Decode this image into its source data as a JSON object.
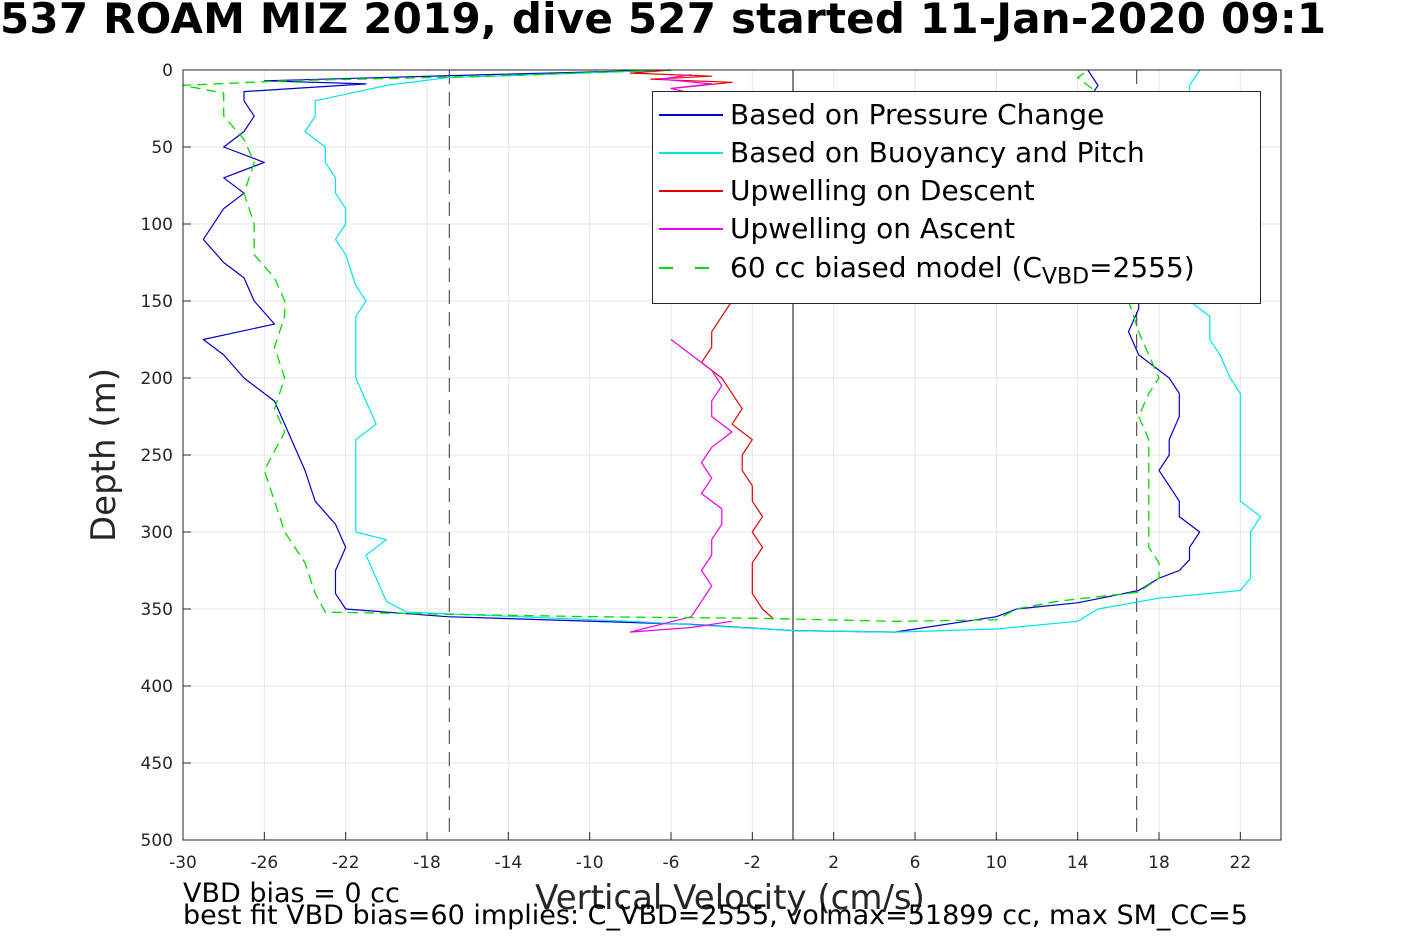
{
  "title": "537 ROAM MIZ 2019, dive 527 started 11-Jan-2020 09:1",
  "footer": {
    "line1": "VBD bias = 0 cc",
    "line2": "best fit VBD bias=60 implies: C_VBD=2555, volmax=51899 cc, max SM_CC=5"
  },
  "colors": {
    "pressure": "#0000cc",
    "buoyancy": "#00e5ee",
    "descent": "#e60000",
    "ascent": "#ee00ee",
    "model": "#00dd00",
    "grid": "#e6e6e6",
    "axis": "#262626"
  },
  "chart_data": {
    "type": "line",
    "xlabel": "Vertical Velocity (cm/s)",
    "ylabel": "Depth (m)",
    "xlim": [
      -30,
      24
    ],
    "ylim": [
      0,
      500
    ],
    "y_reversed": true,
    "xticks": [
      -30,
      -26,
      -22,
      -18,
      -14,
      -10,
      -6,
      -2,
      2,
      6,
      10,
      14,
      18,
      22
    ],
    "yticks": [
      0,
      50,
      100,
      150,
      200,
      250,
      300,
      350,
      400,
      450,
      500
    ],
    "grid": true,
    "legend_position": "top-right",
    "reference_lines": [
      {
        "x": -16.9,
        "style": "dashed"
      },
      {
        "x": 0,
        "style": "solid"
      },
      {
        "x": 16.9,
        "style": "dashed"
      }
    ],
    "legend": [
      {
        "key": "pressure",
        "label": "Based on Pressure Change",
        "style": "solid"
      },
      {
        "key": "buoyancy",
        "label": "Based on Buoyancy and Pitch",
        "style": "solid"
      },
      {
        "key": "descent",
        "label": "Upwelling on Descent",
        "style": "solid"
      },
      {
        "key": "ascent",
        "label": "Upwelling on Ascent",
        "style": "solid"
      },
      {
        "key": "model",
        "label": "60 cc biased model (C",
        "sub": "VBD",
        "suffix": "=2555)",
        "style": "dashed"
      }
    ],
    "series": [
      {
        "key": "pressure",
        "segments": [
          [
            [
              -6,
              0
            ],
            [
              -15,
              3
            ],
            [
              -26,
              7
            ],
            [
              -21,
              9
            ],
            [
              -27,
              14
            ],
            [
              -27,
              20
            ],
            [
              -26.5,
              30
            ],
            [
              -27,
              40
            ],
            [
              -28,
              50
            ],
            [
              -26,
              60
            ],
            [
              -28,
              70
            ],
            [
              -27,
              80
            ],
            [
              -28,
              90
            ],
            [
              -29,
              110
            ],
            [
              -28,
              125
            ],
            [
              -27,
              135
            ],
            [
              -26.5,
              150
            ],
            [
              -25.5,
              165
            ],
            [
              -29,
              175
            ],
            [
              -28,
              185
            ],
            [
              -27,
              200
            ],
            [
              -25.5,
              215
            ],
            [
              -25,
              230
            ],
            [
              -24.5,
              245
            ],
            [
              -24,
              260
            ],
            [
              -23.5,
              280
            ],
            [
              -22.5,
              295
            ],
            [
              -22,
              310
            ],
            [
              -22.5,
              325
            ],
            [
              -22.5,
              340
            ],
            [
              -22,
              350
            ],
            [
              -17,
              355
            ],
            [
              -5,
              360
            ],
            [
              0,
              364
            ],
            [
              5,
              365
            ],
            [
              10,
              355
            ],
            [
              11,
              350
            ],
            [
              14,
              346
            ],
            [
              17,
              338
            ],
            [
              18,
              330
            ],
            [
              19,
              325
            ],
            [
              19.5,
              318
            ],
            [
              19.5,
              310
            ],
            [
              20,
              300
            ],
            [
              19,
              290
            ],
            [
              19,
              280
            ],
            [
              18.5,
              270
            ],
            [
              18,
              260
            ],
            [
              18.5,
              250
            ],
            [
              18.5,
              240
            ],
            [
              19,
              225
            ],
            [
              19,
              210
            ],
            [
              18.5,
              200
            ],
            [
              17,
              185
            ],
            [
              16.5,
              170
            ],
            [
              17,
              155
            ],
            [
              17,
              145
            ],
            [
              17,
              130
            ],
            [
              16,
              120
            ],
            [
              15.5,
              100
            ],
            [
              15.5,
              80
            ],
            [
              15,
              60
            ],
            [
              15,
              40
            ],
            [
              14.5,
              20
            ],
            [
              15,
              10
            ],
            [
              14.5,
              0
            ]
          ]
        ]
      },
      {
        "key": "buoyancy",
        "segments": [
          [
            [
              -6,
              0
            ],
            [
              -17,
              5
            ],
            [
              -20,
              10
            ],
            [
              -23.5,
              20
            ],
            [
              -23.5,
              30
            ],
            [
              -24,
              40
            ],
            [
              -23,
              50
            ],
            [
              -23,
              60
            ],
            [
              -22.5,
              70
            ],
            [
              -22.5,
              80
            ],
            [
              -22,
              90
            ],
            [
              -22,
              100
            ],
            [
              -22.5,
              110
            ],
            [
              -22,
              120
            ],
            [
              -21.5,
              140
            ],
            [
              -21,
              150
            ],
            [
              -21.5,
              160
            ],
            [
              -21.5,
              170
            ],
            [
              -21.5,
              180
            ],
            [
              -21.5,
              200
            ],
            [
              -21,
              215
            ],
            [
              -20.5,
              230
            ],
            [
              -21.5,
              240
            ],
            [
              -21.5,
              260
            ],
            [
              -21.5,
              280
            ],
            [
              -21.5,
              300
            ],
            [
              -20,
              305
            ],
            [
              -21,
              315
            ],
            [
              -20.5,
              330
            ],
            [
              -20,
              345
            ],
            [
              -19,
              352
            ],
            [
              -8,
              358
            ],
            [
              0,
              364
            ],
            [
              5,
              365
            ],
            [
              10,
              363
            ],
            [
              14,
              358
            ],
            [
              15,
              350
            ],
            [
              18,
              343
            ],
            [
              22,
              338
            ],
            [
              22.5,
              330
            ],
            [
              22.5,
              320
            ],
            [
              22.5,
              300
            ],
            [
              23,
              290
            ],
            [
              22,
              280
            ],
            [
              22,
              260
            ],
            [
              22,
              240
            ],
            [
              22,
              220
            ],
            [
              22,
              210
            ],
            [
              21.5,
              200
            ],
            [
              21,
              185
            ],
            [
              20.5,
              175
            ],
            [
              20.5,
              160
            ],
            [
              19.5,
              150
            ],
            [
              19.5,
              120
            ],
            [
              19.5,
              100
            ],
            [
              19,
              80
            ],
            [
              19,
              60
            ],
            [
              19,
              40
            ],
            [
              19.5,
              20
            ],
            [
              19.5,
              10
            ],
            [
              20,
              0
            ]
          ]
        ]
      },
      {
        "key": "descent",
        "segments": [
          [
            [
              -6,
              0
            ],
            [
              -8,
              2
            ],
            [
              -4,
              4
            ],
            [
              -7,
              6
            ],
            [
              -3,
              8
            ],
            [
              -6,
              12
            ]
          ],
          [
            [
              -3,
              150
            ],
            [
              -3.5,
              160
            ],
            [
              -4,
              170
            ],
            [
              -4,
              180
            ],
            [
              -4.5,
              190
            ],
            [
              -3.5,
              200
            ],
            [
              -3,
              210
            ],
            [
              -2.5,
              220
            ],
            [
              -3,
              230
            ],
            [
              -2,
              240
            ],
            [
              -2.5,
              250
            ],
            [
              -2.5,
              260
            ],
            [
              -2,
              270
            ],
            [
              -2,
              280
            ],
            [
              -1.5,
              290
            ],
            [
              -2,
              300
            ],
            [
              -1.5,
              310
            ],
            [
              -2,
              320
            ],
            [
              -2,
              330
            ],
            [
              -2,
              340
            ],
            [
              -1.5,
              350
            ],
            [
              -1,
              356
            ]
          ]
        ]
      },
      {
        "key": "ascent",
        "segments": [
          [
            [
              -5,
              3
            ],
            [
              -6.5,
              6
            ],
            [
              -4,
              9
            ],
            [
              -6,
              12
            ],
            [
              -5,
              15
            ]
          ],
          [
            [
              -6,
              175
            ],
            [
              -5,
              185
            ],
            [
              -4,
              195
            ],
            [
              -3.5,
              205
            ],
            [
              -4,
              215
            ],
            [
              -4,
              225
            ],
            [
              -3,
              235
            ],
            [
              -4,
              245
            ],
            [
              -4.5,
              255
            ],
            [
              -4,
              265
            ],
            [
              -4.5,
              275
            ],
            [
              -3.5,
              285
            ],
            [
              -3.5,
              295
            ],
            [
              -4,
              305
            ],
            [
              -4,
              315
            ],
            [
              -4.5,
              325
            ],
            [
              -4,
              335
            ],
            [
              -4.5,
              345
            ],
            [
              -5,
              355
            ],
            [
              -8,
              365
            ],
            [
              -5,
              362
            ],
            [
              -3,
              358
            ]
          ]
        ]
      },
      {
        "key": "model",
        "segments": [
          [
            [
              -6,
              0
            ],
            [
              -15,
              4
            ],
            [
              -25,
              7
            ],
            [
              -30,
              10
            ],
            [
              -28,
              15
            ],
            [
              -28,
              30
            ],
            [
              -27,
              45
            ],
            [
              -26.5,
              60
            ],
            [
              -27,
              80
            ],
            [
              -26.5,
              100
            ],
            [
              -26.5,
              120
            ],
            [
              -25.5,
              135
            ],
            [
              -25,
              150
            ],
            [
              -25,
              160
            ],
            [
              -25.5,
              180
            ],
            [
              -25,
              200
            ],
            [
              -25.5,
              220
            ],
            [
              -25,
              235
            ],
            [
              -26,
              260
            ],
            [
              -25.5,
              280
            ],
            [
              -25,
              300
            ],
            [
              -24,
              320
            ],
            [
              -23.5,
              340
            ],
            [
              -23,
              352
            ],
            [
              -10,
              355
            ],
            [
              -2,
              356
            ],
            [
              5,
              358
            ],
            [
              10,
              357
            ],
            [
              11,
              350
            ],
            [
              13,
              345
            ],
            [
              17,
              339
            ],
            [
              18,
              330
            ],
            [
              18,
              320
            ],
            [
              17.5,
              310
            ],
            [
              17.5,
              300
            ],
            [
              17.5,
              280
            ],
            [
              17.5,
              260
            ],
            [
              17.5,
              240
            ],
            [
              17,
              225
            ],
            [
              17.5,
              210
            ],
            [
              18,
              200
            ],
            [
              17.5,
              185
            ],
            [
              17,
              170
            ],
            [
              16.5,
              150
            ],
            [
              16,
              130
            ],
            [
              16,
              110
            ],
            [
              15.5,
              90
            ],
            [
              15,
              70
            ],
            [
              14.5,
              50
            ],
            [
              14,
              30
            ],
            [
              15,
              15
            ],
            [
              14,
              5
            ],
            [
              14.5,
              0
            ]
          ]
        ]
      }
    ]
  }
}
